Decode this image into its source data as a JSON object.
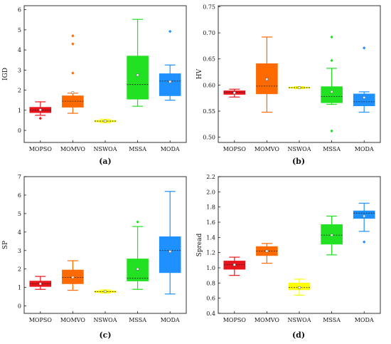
{
  "chart_data": [
    {
      "type": "box",
      "panel_label": "(a)",
      "ylabel": "IGD",
      "ylim": [
        -0.6,
        6.2
      ],
      "yticks": [
        0,
        1,
        2,
        3,
        4,
        5,
        6
      ],
      "tick_labels": [
        "0",
        "1",
        "2",
        "3",
        "4",
        "5",
        "6"
      ],
      "categories": [
        "MOPSO",
        "MOMVO",
        "NSWOA",
        "MSSA",
        "MODA"
      ],
      "colors": [
        "#e8141b",
        "#ff6a00",
        "#ffff00",
        "#22e022",
        "#1e90ff"
      ],
      "boxes": [
        {
          "whislo": 0.75,
          "q1": 0.88,
          "med": 1.0,
          "q3": 1.15,
          "whishi": 1.42,
          "mean": 1.02,
          "fliers": [
            0.6
          ]
        },
        {
          "whislo": 0.85,
          "q1": 1.15,
          "med": 1.45,
          "q3": 1.72,
          "whishi": 1.85,
          "mean": 1.88,
          "fliers": [
            2.85,
            4.3,
            4.7
          ]
        },
        {
          "whislo": 0.38,
          "q1": 0.42,
          "med": 0.46,
          "q3": 0.5,
          "whishi": 0.55,
          "mean": 0.46,
          "fliers": []
        },
        {
          "whislo": 1.2,
          "q1": 1.55,
          "med": 2.28,
          "q3": 3.7,
          "whishi": 5.52,
          "mean": 2.75,
          "fliers": []
        },
        {
          "whislo": 1.5,
          "q1": 1.72,
          "med": 2.45,
          "q3": 2.82,
          "whishi": 3.25,
          "mean": 2.42,
          "fliers": [
            4.92
          ]
        }
      ]
    },
    {
      "type": "box",
      "panel_label": "(b)",
      "ylabel": "HV",
      "ylim": [
        0.49,
        0.752
      ],
      "yticks": [
        0.5,
        0.55,
        0.6,
        0.65,
        0.7,
        0.75
      ],
      "tick_labels": [
        "0.50",
        "0.55",
        "0.60",
        "0.65",
        "0.70",
        "0.75"
      ],
      "categories": [
        "MOPSO",
        "MOMVO",
        "NSWOA",
        "MSSA",
        "MODA"
      ],
      "colors": [
        "#e8141b",
        "#ff6a00",
        "#ffff00",
        "#22e022",
        "#1e90ff"
      ],
      "boxes": [
        {
          "whislo": 0.577,
          "q1": 0.582,
          "med": 0.586,
          "q3": 0.589,
          "whishi": 0.592,
          "mean": 0.585,
          "fliers": []
        },
        {
          "whislo": 0.548,
          "q1": 0.583,
          "med": 0.598,
          "q3": 0.641,
          "whishi": 0.692,
          "mean": 0.611,
          "fliers": []
        },
        {
          "whislo": 0.593,
          "q1": 0.594,
          "med": 0.595,
          "q3": 0.596,
          "whishi": 0.597,
          "mean": 0.595,
          "fliers": []
        },
        {
          "whislo": 0.563,
          "q1": 0.566,
          "med": 0.578,
          "q3": 0.597,
          "whishi": 0.632,
          "mean": 0.587,
          "fliers": [
            0.512,
            0.647,
            0.692
          ]
        },
        {
          "whislo": 0.548,
          "q1": 0.56,
          "med": 0.568,
          "q3": 0.583,
          "whishi": 0.587,
          "mean": 0.576,
          "fliers": [
            0.671
          ]
        }
      ]
    },
    {
      "type": "box",
      "panel_label": "(c)",
      "ylabel": "SP",
      "ylim": [
        -0.4,
        7.0
      ],
      "yticks": [
        0,
        1,
        2,
        3,
        4,
        5,
        6,
        7
      ],
      "tick_labels": [
        "0",
        "1",
        "2",
        "3",
        "4",
        "5",
        "6",
        "7"
      ],
      "categories": [
        "MOPSO",
        "MOMVO",
        "NSWOA",
        "MSSA",
        "MODA"
      ],
      "colors": [
        "#e8141b",
        "#ff6a00",
        "#ffff00",
        "#22e022",
        "#1e90ff"
      ],
      "boxes": [
        {
          "whislo": 0.9,
          "q1": 1.05,
          "med": 1.2,
          "q3": 1.35,
          "whishi": 1.6,
          "mean": 1.2,
          "fliers": []
        },
        {
          "whislo": 0.85,
          "q1": 1.2,
          "med": 1.55,
          "q3": 1.95,
          "whishi": 2.45,
          "mean": 1.55,
          "fliers": []
        },
        {
          "whislo": 0.7,
          "q1": 0.73,
          "med": 0.78,
          "q3": 0.83,
          "whishi": 0.87,
          "mean": 0.78,
          "fliers": []
        },
        {
          "whislo": 0.9,
          "q1": 1.35,
          "med": 1.5,
          "q3": 2.55,
          "whishi": 4.3,
          "mean": 2.0,
          "fliers": [
            4.55
          ]
        },
        {
          "whislo": 0.65,
          "q1": 1.8,
          "med": 3.0,
          "q3": 3.75,
          "whishi": 6.2,
          "mean": 2.95,
          "fliers": []
        }
      ]
    },
    {
      "type": "box",
      "panel_label": "(d)",
      "ylabel": "Spread",
      "ylim": [
        0.4,
        2.2
      ],
      "yticks": [
        0.4,
        0.6,
        0.8,
        1.0,
        1.2,
        1.4,
        1.6,
        1.8,
        2.0,
        2.2
      ],
      "tick_labels": [
        "0.4",
        "0.6",
        "0.8",
        "1.0",
        "1.2",
        "1.4",
        "1.6",
        "1.8",
        "2.0",
        "2.2"
      ],
      "categories": [
        "MOPSO",
        "MOMVO",
        "NSWOA",
        "MSSA",
        "MODA"
      ],
      "colors": [
        "#e8141b",
        "#ff6a00",
        "#ffff00",
        "#22e022",
        "#1e90ff"
      ],
      "boxes": [
        {
          "whislo": 0.9,
          "q1": 0.98,
          "med": 1.04,
          "q3": 1.09,
          "whishi": 1.14,
          "mean": 1.04,
          "fliers": []
        },
        {
          "whislo": 1.06,
          "q1": 1.16,
          "med": 1.22,
          "q3": 1.28,
          "whishi": 1.32,
          "mean": 1.22,
          "fliers": []
        },
        {
          "whislo": 0.64,
          "q1": 0.71,
          "med": 0.74,
          "q3": 0.8,
          "whishi": 0.85,
          "mean": 0.74,
          "fliers": []
        },
        {
          "whislo": 1.17,
          "q1": 1.31,
          "med": 1.43,
          "q3": 1.57,
          "whishi": 1.68,
          "mean": 1.43,
          "fliers": []
        },
        {
          "whislo": 1.48,
          "q1": 1.65,
          "med": 1.72,
          "q3": 1.75,
          "whishi": 1.85,
          "mean": 1.68,
          "fliers": [
            1.34
          ]
        }
      ]
    }
  ]
}
